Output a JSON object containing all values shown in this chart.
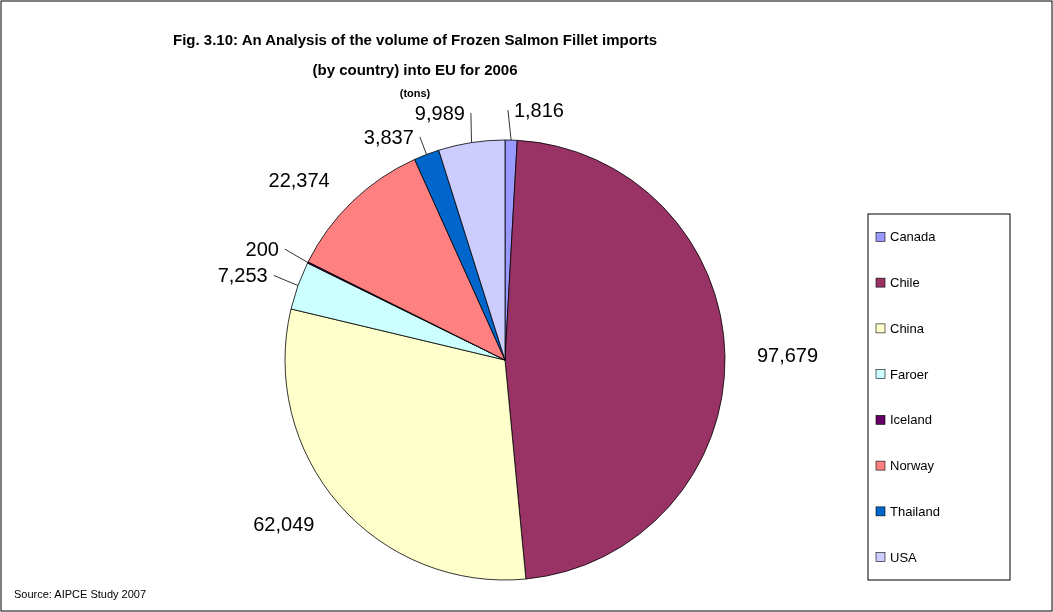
{
  "chart_data": {
    "type": "pie",
    "title": "Fig. 3.10: An Analysis of the volume of Frozen Salmon Fillet imports (by country) into EU for 2006",
    "subtitle": "(tons)",
    "categories": [
      "Canada",
      "Chile",
      "China",
      "Faroer",
      "Iceland",
      "Norway",
      "Thailand",
      "USA"
    ],
    "values": [
      1816,
      97679,
      62049,
      7253,
      200,
      22374,
      3837,
      9989
    ],
    "colors": [
      "#9999ff",
      "#993366",
      "#ffffcc",
      "#ccffff",
      "#660066",
      "#ff8080",
      "#0066cc",
      "#ccccff"
    ],
    "value_labels": [
      "1,816",
      "97,679",
      "62,049",
      "7,253",
      "200",
      "22,374",
      "3,837",
      "9,989"
    ],
    "legend": "right",
    "annotations": [
      "Source: AIPCE Study 2007"
    ]
  }
}
